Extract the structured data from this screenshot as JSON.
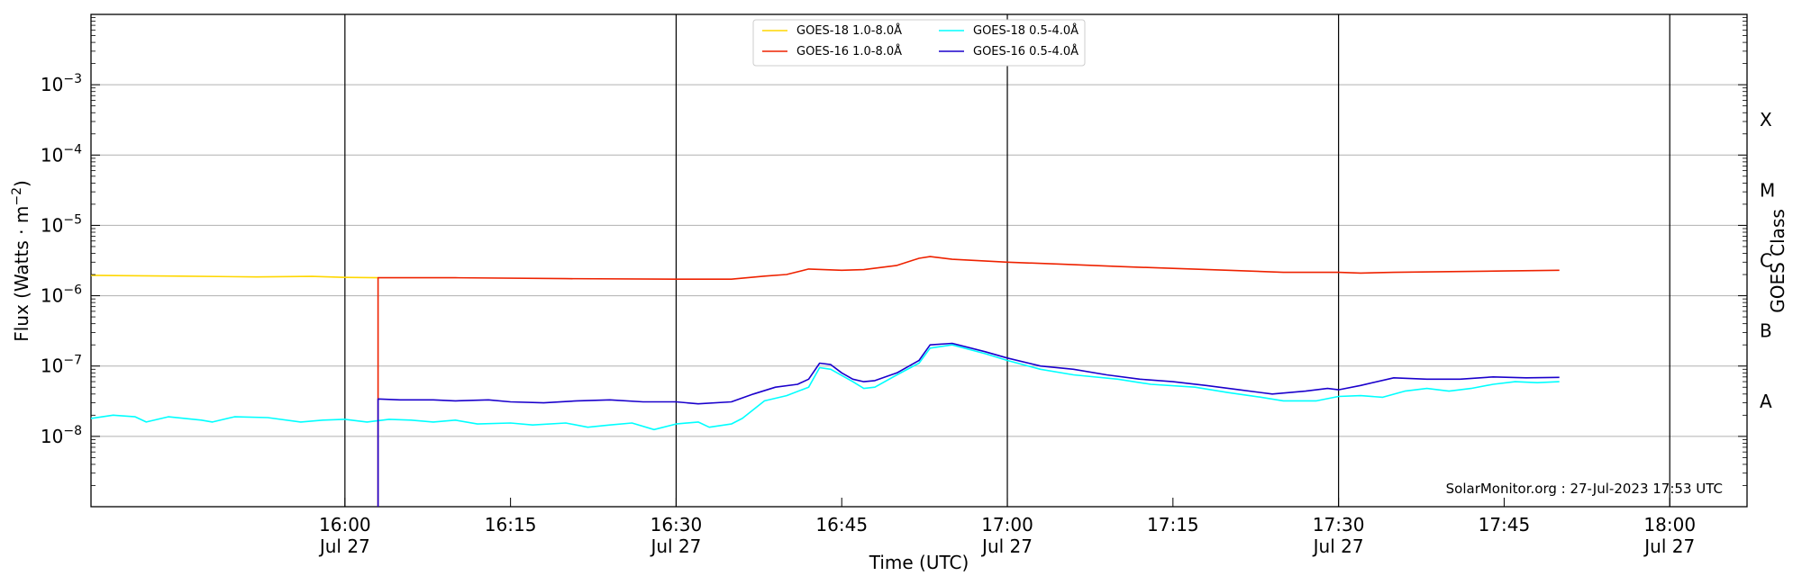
{
  "chart_data": {
    "type": "line",
    "xlabel": "Time (UTC)",
    "ylabel": "Flux (Watts · m",
    "ylabel_sup": "−2",
    "ylabel_end": ")",
    "y2label": "GOES Class",
    "credit": "SolarMonitor.org : 27-Jul-2023 17:53 UTC",
    "yscale": "log",
    "ylim": [
      1e-09,
      0.01
    ],
    "xlim": [
      "15:37",
      "18:07"
    ],
    "y_ticks": [
      {
        "value": 1e-08,
        "base": "10",
        "exp": "−8"
      },
      {
        "value": 1e-07,
        "base": "10",
        "exp": "−7"
      },
      {
        "value": 1e-06,
        "base": "10",
        "exp": "−6"
      },
      {
        "value": 1e-05,
        "base": "10",
        "exp": "−5"
      },
      {
        "value": 0.0001,
        "base": "10",
        "exp": "−4"
      },
      {
        "value": 0.001,
        "base": "10",
        "exp": "−3"
      }
    ],
    "x_ticks": [
      {
        "time": "16:00",
        "line1": "16:00",
        "line2": "Jul 27"
      },
      {
        "time": "16:15",
        "line1": "16:15",
        "line2": ""
      },
      {
        "time": "16:30",
        "line1": "16:30",
        "line2": "Jul 27"
      },
      {
        "time": "16:45",
        "line1": "16:45",
        "line2": ""
      },
      {
        "time": "17:00",
        "line1": "17:00",
        "line2": "Jul 27"
      },
      {
        "time": "17:15",
        "line1": "17:15",
        "line2": ""
      },
      {
        "time": "17:30",
        "line1": "17:30",
        "line2": "Jul 27"
      },
      {
        "time": "17:45",
        "line1": "17:45",
        "line2": ""
      },
      {
        "time": "18:00",
        "line1": "18:00",
        "line2": "Jul 27"
      }
    ],
    "vlines": [
      "16:00",
      "16:30",
      "17:00",
      "17:30",
      "18:00"
    ],
    "class_labels": [
      {
        "label": "A",
        "value": 3.16e-08
      },
      {
        "label": "B",
        "value": 3.16e-07
      },
      {
        "label": "C",
        "value": 3.16e-06
      },
      {
        "label": "M",
        "value": 3.16e-05
      },
      {
        "label": "X",
        "value": 0.000316
      }
    ],
    "grid": "horizontal at decades",
    "legend_position": "top-center",
    "series": [
      {
        "name": "GOES-18 1.0-8.0Å",
        "color": "#ffd700",
        "points": [
          [
            "15:37",
            1.95e-06
          ],
          [
            "15:45",
            1.9e-06
          ],
          [
            "15:52",
            1.85e-06
          ],
          [
            "15:57",
            1.88e-06
          ],
          [
            "16:00",
            1.82e-06
          ],
          [
            "16:03",
            1.8e-06
          ]
        ]
      },
      {
        "name": "GOES-16 1.0-8.0Å",
        "color": "#ee2200",
        "points": [
          [
            "16:03",
            1e-09
          ],
          [
            "16:03",
            1.8e-06
          ],
          [
            "16:10",
            1.8e-06
          ],
          [
            "16:20",
            1.75e-06
          ],
          [
            "16:30",
            1.72e-06
          ],
          [
            "16:35",
            1.72e-06
          ],
          [
            "16:38",
            1.9e-06
          ],
          [
            "16:40",
            2e-06
          ],
          [
            "16:42",
            2.4e-06
          ],
          [
            "16:45",
            2.3e-06
          ],
          [
            "16:47",
            2.35e-06
          ],
          [
            "16:50",
            2.7e-06
          ],
          [
            "16:52",
            3.4e-06
          ],
          [
            "16:53",
            3.6e-06
          ],
          [
            "16:55",
            3.3e-06
          ],
          [
            "17:00",
            3e-06
          ],
          [
            "17:05",
            2.8e-06
          ],
          [
            "17:10",
            2.6e-06
          ],
          [
            "17:15",
            2.45e-06
          ],
          [
            "17:20",
            2.3e-06
          ],
          [
            "17:25",
            2.15e-06
          ],
          [
            "17:30",
            2.15e-06
          ],
          [
            "17:32",
            2.1e-06
          ],
          [
            "17:35",
            2.15e-06
          ],
          [
            "17:40",
            2.2e-06
          ],
          [
            "17:45",
            2.25e-06
          ],
          [
            "17:50",
            2.3e-06
          ]
        ]
      },
      {
        "name": "GOES-18 0.5-4.0Å",
        "color": "#00ffff",
        "points": [
          [
            "15:37",
            1.8e-08
          ],
          [
            "15:39",
            2e-08
          ],
          [
            "15:41",
            1.9e-08
          ],
          [
            "15:42",
            1.6e-08
          ],
          [
            "15:44",
            1.9e-08
          ],
          [
            "15:47",
            1.7e-08
          ],
          [
            "15:48",
            1.6e-08
          ],
          [
            "15:50",
            1.9e-08
          ],
          [
            "15:53",
            1.85e-08
          ],
          [
            "15:56",
            1.6e-08
          ],
          [
            "15:58",
            1.7e-08
          ],
          [
            "16:00",
            1.75e-08
          ],
          [
            "16:02",
            1.6e-08
          ],
          [
            "16:04",
            1.75e-08
          ],
          [
            "16:06",
            1.7e-08
          ],
          [
            "16:08",
            1.6e-08
          ],
          [
            "16:10",
            1.7e-08
          ],
          [
            "16:12",
            1.5e-08
          ],
          [
            "16:15",
            1.55e-08
          ],
          [
            "16:17",
            1.45e-08
          ],
          [
            "16:20",
            1.55e-08
          ],
          [
            "16:22",
            1.35e-08
          ],
          [
            "16:24",
            1.45e-08
          ],
          [
            "16:26",
            1.55e-08
          ],
          [
            "16:28",
            1.25e-08
          ],
          [
            "16:30",
            1.5e-08
          ],
          [
            "16:32",
            1.6e-08
          ],
          [
            "16:33",
            1.35e-08
          ],
          [
            "16:35",
            1.5e-08
          ],
          [
            "16:36",
            1.8e-08
          ],
          [
            "16:38",
            3.2e-08
          ],
          [
            "16:40",
            3.8e-08
          ],
          [
            "16:42",
            5e-08
          ],
          [
            "16:43",
            9.5e-08
          ],
          [
            "16:44",
            9e-08
          ],
          [
            "16:46",
            6e-08
          ],
          [
            "16:47",
            4.8e-08
          ],
          [
            "16:48",
            5e-08
          ],
          [
            "16:50",
            7.5e-08
          ],
          [
            "16:52",
            1.1e-07
          ],
          [
            "16:53",
            1.8e-07
          ],
          [
            "16:55",
            2e-07
          ],
          [
            "16:58",
            1.5e-07
          ],
          [
            "17:00",
            1.2e-07
          ],
          [
            "17:03",
            9e-08
          ],
          [
            "17:06",
            7.5e-08
          ],
          [
            "17:10",
            6.5e-08
          ],
          [
            "17:13",
            5.5e-08
          ],
          [
            "17:17",
            5e-08
          ],
          [
            "17:20",
            4.2e-08
          ],
          [
            "17:23",
            3.6e-08
          ],
          [
            "17:25",
            3.2e-08
          ],
          [
            "17:28",
            3.2e-08
          ],
          [
            "17:30",
            3.7e-08
          ],
          [
            "17:32",
            3.8e-08
          ],
          [
            "17:34",
            3.6e-08
          ],
          [
            "17:36",
            4.4e-08
          ],
          [
            "17:38",
            4.8e-08
          ],
          [
            "17:40",
            4.4e-08
          ],
          [
            "17:42",
            4.8e-08
          ],
          [
            "17:44",
            5.5e-08
          ],
          [
            "17:46",
            6e-08
          ],
          [
            "17:48",
            5.8e-08
          ],
          [
            "17:50",
            6e-08
          ]
        ]
      },
      {
        "name": "GOES-16 0.5-4.0Å",
        "color": "#1a00cc",
        "points": [
          [
            "16:03",
            1e-09
          ],
          [
            "16:03",
            3.4e-08
          ],
          [
            "16:05",
            3.3e-08
          ],
          [
            "16:08",
            3.3e-08
          ],
          [
            "16:10",
            3.2e-08
          ],
          [
            "16:13",
            3.3e-08
          ],
          [
            "16:15",
            3.1e-08
          ],
          [
            "16:18",
            3e-08
          ],
          [
            "16:21",
            3.2e-08
          ],
          [
            "16:24",
            3.3e-08
          ],
          [
            "16:27",
            3.1e-08
          ],
          [
            "16:30",
            3.1e-08
          ],
          [
            "16:32",
            2.9e-08
          ],
          [
            "16:35",
            3.1e-08
          ],
          [
            "16:37",
            4e-08
          ],
          [
            "16:39",
            5e-08
          ],
          [
            "16:41",
            5.5e-08
          ],
          [
            "16:42",
            6.5e-08
          ],
          [
            "16:43",
            1.1e-07
          ],
          [
            "16:44",
            1.05e-07
          ],
          [
            "16:45",
            8e-08
          ],
          [
            "16:46",
            6.5e-08
          ],
          [
            "16:47",
            6e-08
          ],
          [
            "16:48",
            6.2e-08
          ],
          [
            "16:50",
            8e-08
          ],
          [
            "16:52",
            1.2e-07
          ],
          [
            "16:53",
            2e-07
          ],
          [
            "16:55",
            2.1e-07
          ],
          [
            "16:58",
            1.6e-07
          ],
          [
            "17:00",
            1.3e-07
          ],
          [
            "17:03",
            1e-07
          ],
          [
            "17:06",
            9e-08
          ],
          [
            "17:09",
            7.5e-08
          ],
          [
            "17:12",
            6.5e-08
          ],
          [
            "17:15",
            6e-08
          ],
          [
            "17:18",
            5.3e-08
          ],
          [
            "17:21",
            4.6e-08
          ],
          [
            "17:24",
            4e-08
          ],
          [
            "17:27",
            4.4e-08
          ],
          [
            "17:29",
            4.8e-08
          ],
          [
            "17:30",
            4.6e-08
          ],
          [
            "17:32",
            5.3e-08
          ],
          [
            "17:35",
            6.8e-08
          ],
          [
            "17:38",
            6.5e-08
          ],
          [
            "17:41",
            6.5e-08
          ],
          [
            "17:44",
            7e-08
          ],
          [
            "17:47",
            6.8e-08
          ],
          [
            "17:50",
            6.9e-08
          ]
        ]
      }
    ]
  }
}
